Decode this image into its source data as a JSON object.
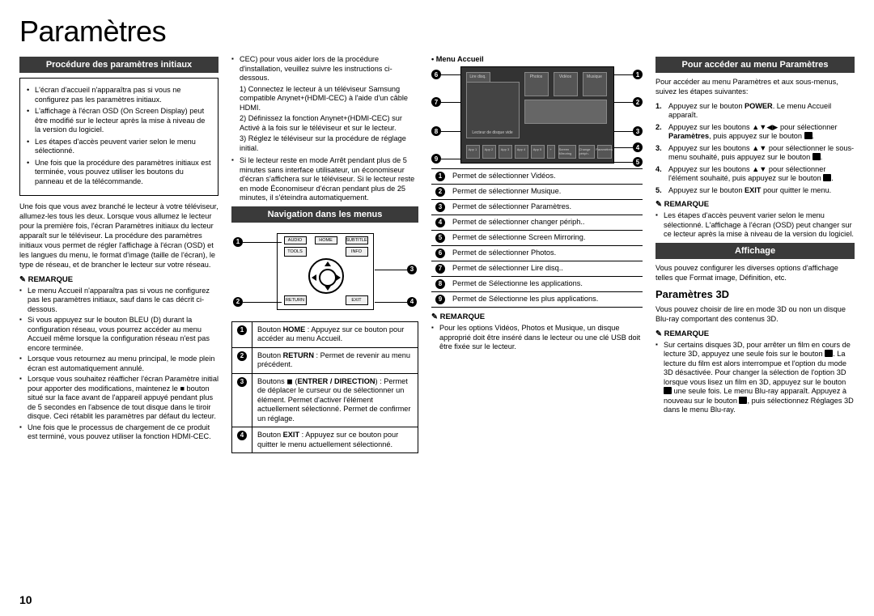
{
  "page_title": "Paramètres",
  "page_number": "10",
  "col1": {
    "bar": "Procédure des paramètres initiaux",
    "box_bullets": [
      "L'écran d'accueil n'apparaîtra pas si vous ne configurez pas les paramètres initiaux.",
      "L'affichage à l'écran OSD (On Screen Display) peut être modifié sur le lecteur après la mise à niveau de la version du logiciel.",
      "Les étapes d'accès peuvent varier selon le menu sélectionné.",
      "Une fois que la procédure des paramètres initiaux est terminée, vous pouvez utiliser les boutons du panneau et de la télécommande."
    ],
    "para": "Une fois que vous avez branché le lecteur à votre téléviseur, allumez-les tous les deux. Lorsque vous allumez le lecteur pour la première fois, l'écran Paramètres initiaux du lecteur apparaît sur le téléviseur. La procédure des paramètres initiaux vous permet de régler l'affichage à l'écran (OSD) et les langues du menu, le format d'image (taille de l'écran), le type de réseau, et de brancher le lecteur sur votre réseau.",
    "remarque_hd": "REMARQUE",
    "remarque_items": [
      "Le menu Accueil n'apparaîtra pas si vous ne configurez pas les paramètres initiaux, sauf dans le cas décrit ci-dessous.",
      "Si vous appuyez sur le bouton BLEU (D) durant la configuration réseau, vous pourrez accéder au menu Accueil même lorsque la configuration réseau n'est pas encore terminée.",
      "Lorsque vous retournez au menu principal, le mode plein écran est automatiquement annulé.",
      "Lorsque vous souhaitez réafficher l'écran Paramètre initial pour apporter des modifications, maintenez le ■ bouton  situé sur la face avant de l'appareil appuyé pendant plus de 5 secondes en l'absence de tout disque dans le tiroir disque. Ceci rétablit les paramètres par défaut du lecteur.",
      "Une fois que le processus de chargement de ce produit est terminé, vous pouvez utiliser la fonction HDMI-CEC."
    ]
  },
  "col2": {
    "top_bullets": [
      "CEC) pour vous aider lors de la procédure d'installation, veuillez suivre les instructions ci-dessous."
    ],
    "numbered": [
      "1) Connectez le lecteur à un téléviseur Samsung compatible Anynet+(HDMI-CEC) à l'aide d'un câble HDMI.",
      "2) Définissez la fonction Anynet+(HDMI-CEC) sur Activé à la fois sur le téléviseur et sur le lecteur.",
      "3) Réglez le téléviseur sur la procédure de réglage initial."
    ],
    "bottom_bullets": [
      "Si le lecteur reste en mode Arrêt pendant plus de 5 minutes sans interface utilisateur, un économiseur d'écran s'affichera sur le téléviseur. Si le lecteur reste en mode Économiseur d'écran pendant plus de 25 minutes, il s'éteindra automatiquement."
    ],
    "bar": "Navigation dans les menus",
    "remote": {
      "top": [
        "AUDIO",
        "HOME",
        "SUBTITLE"
      ],
      "mid": [
        "TOOLS",
        "",
        "INFO"
      ],
      "bot": [
        "RETURN",
        "",
        "EXIT"
      ]
    },
    "navtable": [
      {
        "n": "1",
        "text": "Bouton HOME : Appuyez sur ce bouton pour accéder au menu Accueil."
      },
      {
        "n": "2",
        "text": "Bouton RETURN : Permet de revenir au menu précédent."
      },
      {
        "n": "3",
        "text": "Boutons ◼ (ENTRER / DIRECTION) : Permet de déplacer le curseur ou de sélectionner un élément. Permet d'activer l'élément actuellement sélectionné. Permet de confirmer un réglage."
      },
      {
        "n": "4",
        "text": "Bouton EXIT : Appuyez sur ce bouton pour quitter le menu actuellement sélectionné."
      }
    ]
  },
  "col3": {
    "menu_label": "• Menu Accueil",
    "tiles": {
      "big": "Lecteur de disque vide",
      "t1": "Lire disq.",
      "t2": "Photos",
      "t3": "Vidéos",
      "t4": "Musique",
      "apps": [
        "App 1",
        "App 2",
        "App 3",
        "App 4",
        "App 5"
      ],
      "right": [
        "Screen Mirroring",
        "Change périph.",
        "Paramètres"
      ]
    },
    "legend": [
      {
        "n": "1",
        "text": "Permet de sélectionner Vidéos."
      },
      {
        "n": "2",
        "text": "Permet de sélectionner Musique."
      },
      {
        "n": "3",
        "text": "Permet de sélectionner Paramètres."
      },
      {
        "n": "4",
        "text": "Permet de sélectionner changer périph.."
      },
      {
        "n": "5",
        "text": "Permet de sélectionne Screen Mirroring."
      },
      {
        "n": "6",
        "text": "Permet de sélectionner Photos."
      },
      {
        "n": "7",
        "text": "Permet de sélectionner  Lire disq.."
      },
      {
        "n": "8",
        "text": "Permet de Sélectionne les applications."
      },
      {
        "n": "9",
        "text": "Permet de Sélectionne les plus applications."
      }
    ],
    "remarque_hd": "REMARQUE",
    "remarque_items": [
      "Pour les options Vidéos, Photos et Musique, un disque approprié doit être inséré dans le lecteur ou une clé USB doit être fixée sur le lecteur."
    ]
  },
  "col4": {
    "bar1": "Pour accéder au menu Paramètres",
    "para": "Pour accéder au menu Paramètres et aux sous-menus, suivez les étapes suivantes:",
    "steps": [
      "Appuyez sur le bouton POWER. Le menu Accueil apparaît.",
      "Appuyez sur les boutons ▲▼◀▶ pour sélectionner Paramètres, puis appuyez sur le bouton ◼.",
      "Appuyez sur les boutons ▲▼ pour sélectionner le sous-menu souhaité, puis appuyez sur le bouton ◼.",
      "Appuyez sur les boutons ▲▼ pour sélectionner l'élément  souhaité, puis appuyez sur le bouton  ◼.",
      "Appuyez sur le bouton EXIT pour quitter le menu."
    ],
    "remarque1_hd": "REMARQUE",
    "remarque1_items": [
      "Les étapes d'accès peuvent varier selon le menu sélectionné. L'affichage à l'écran (OSD) peut changer sur ce lecteur après la mise à niveau de la version du logiciel."
    ],
    "bar2": "Affichage",
    "para2": "Vous pouvez configurer les diverses options d'affichage telles que Format image, Définition, etc.",
    "sub_h": "Paramètres 3D",
    "para3": "Vous pouvez choisir de lire en mode 3D ou non un disque Blu-ray comportant des contenus 3D.",
    "remarque2_hd": "REMARQUE",
    "remarque2_items": [
      "Sur certains disques 3D, pour arrêter un film en cours de lecture 3D, appuyez une seule fois sur le bouton ■. La lecture du film est alors interrompue et l'option du mode 3D désactivée. Pour changer la sélection de l'option 3D lorsque vous lisez un film en 3D, appuyez sur le bouton ■ une seule fois. Le menu Blu-ray apparaît. Appuyez à nouveau sur le bouton ■, puis sélectionnez Réglages 3D dans le menu Blu-ray."
    ]
  }
}
